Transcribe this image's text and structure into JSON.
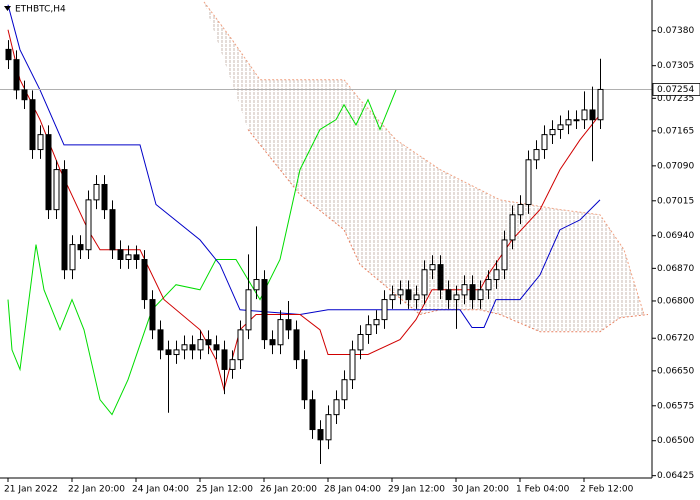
{
  "chart_data": {
    "type": "candlestick",
    "title": "ETHBTC,H4",
    "xlim": [
      -1,
      80.5
    ],
    "ylim": [
      0.0642,
      0.07446
    ],
    "xticks": [
      {
        "value": 0,
        "label": "21 Jan 2022"
      },
      {
        "value": 8,
        "label": "22 Jan 20:00"
      },
      {
        "value": 16,
        "label": "24 Jan 04:00"
      },
      {
        "value": 24,
        "label": "25 Jan 12:00"
      },
      {
        "value": 32,
        "label": "26 Jan 20:00"
      },
      {
        "value": 40,
        "label": "28 Jan 04:00"
      },
      {
        "value": 48,
        "label": "29 Jan 12:00"
      },
      {
        "value": 56,
        "label": "30 Jan 20:00"
      },
      {
        "value": 64,
        "label": "1 Feb 04:00"
      },
      {
        "value": 72,
        "label": "2 Feb 12:00"
      }
    ],
    "yticks": [
      {
        "value": 0.0738,
        "label": "0.07380"
      },
      {
        "value": 0.07305,
        "label": "0.07305"
      },
      {
        "value": 0.07235,
        "label": "0.07235"
      },
      {
        "value": 0.07165,
        "label": "0.07165"
      },
      {
        "value": 0.0709,
        "label": "0.07090"
      },
      {
        "value": 0.07015,
        "label": "0.07015"
      },
      {
        "value": 0.0694,
        "label": "0.06940"
      },
      {
        "value": 0.0687,
        "label": "0.06870"
      },
      {
        "value": 0.068,
        "label": "0.06800"
      },
      {
        "value": 0.0672,
        "label": "0.06720"
      },
      {
        "value": 0.0665,
        "label": "0.06650"
      },
      {
        "value": 0.06575,
        "label": "0.06575"
      },
      {
        "value": 0.065,
        "label": "0.06500"
      },
      {
        "value": 0.06425,
        "label": "0.06425"
      }
    ],
    "current_price": {
      "value": 0.07254,
      "label": "0.07254"
    },
    "up_color": "#ffffff",
    "down_color": "#000000",
    "open": [
      0.0734,
      0.07318,
      0.07253,
      0.07232,
      0.07125,
      0.07157,
      0.06996,
      0.07082,
      0.06867,
      0.06921,
      0.0691,
      0.07017,
      0.0705,
      0.06996,
      0.0691,
      0.06889,
      0.06899,
      0.06889,
      0.06803,
      0.06738,
      0.06695,
      0.06685,
      0.06695,
      0.06706,
      0.06695,
      0.06717,
      0.06706,
      0.06695,
      0.06653,
      0.06674,
      0.06738,
      0.06824,
      0.06846,
      0.06717,
      0.06706,
      0.0676,
      0.06738,
      0.06674,
      0.06588,
      0.06524,
      0.06502,
      0.06556,
      0.06588,
      0.06631,
      0.06695,
      0.06728,
      0.06749,
      0.0676,
      0.06803,
      0.06813,
      0.06824,
      0.06803,
      0.06813,
      0.06867,
      0.06878,
      0.06824,
      0.06803,
      0.06813,
      0.06835,
      0.06803,
      0.06824,
      0.06846,
      0.06867,
      0.06931,
      0.06985,
      0.07007,
      0.07103,
      0.07125,
      0.07157,
      0.07168,
      0.07178,
      0.07189,
      0.07189,
      0.0721,
      0.07189
    ],
    "high": [
      0.0736,
      0.07338,
      0.07273,
      0.07252,
      0.07177,
      0.07177,
      0.07102,
      0.07102,
      0.06941,
      0.06941,
      0.07037,
      0.0707,
      0.0707,
      0.07016,
      0.0693,
      0.06919,
      0.06919,
      0.06909,
      0.06823,
      0.06758,
      0.06715,
      0.06715,
      0.06726,
      0.06726,
      0.06737,
      0.06737,
      0.06726,
      0.06715,
      0.06694,
      0.06758,
      0.069,
      0.0696,
      0.06866,
      0.06737,
      0.0678,
      0.068,
      0.06758,
      0.06694,
      0.06608,
      0.06544,
      0.06576,
      0.06608,
      0.06651,
      0.06715,
      0.06748,
      0.06769,
      0.0678,
      0.06823,
      0.06833,
      0.06844,
      0.06844,
      0.06833,
      0.06887,
      0.06898,
      0.06898,
      0.06844,
      0.06833,
      0.06855,
      0.06855,
      0.06844,
      0.06866,
      0.06887,
      0.06951,
      0.07005,
      0.07027,
      0.07123,
      0.07145,
      0.07177,
      0.07188,
      0.07198,
      0.07209,
      0.07209,
      0.0725,
      0.0726,
      0.0732
    ],
    "low": [
      0.07298,
      0.07233,
      0.07212,
      0.07105,
      0.07105,
      0.06976,
      0.06976,
      0.06847,
      0.06847,
      0.0689,
      0.0689,
      0.06997,
      0.06976,
      0.0689,
      0.06869,
      0.06869,
      0.06869,
      0.06783,
      0.06718,
      0.06675,
      0.0656,
      0.06665,
      0.06675,
      0.06675,
      0.06675,
      0.06686,
      0.06675,
      0.066,
      0.06633,
      0.06654,
      0.06718,
      0.06804,
      0.06697,
      0.06686,
      0.06686,
      0.06718,
      0.06654,
      0.06568,
      0.06504,
      0.0645,
      0.06482,
      0.06536,
      0.06568,
      0.06611,
      0.06675,
      0.06708,
      0.06729,
      0.0674,
      0.06783,
      0.06793,
      0.06783,
      0.06783,
      0.06793,
      0.06847,
      0.06804,
      0.06783,
      0.0674,
      0.06793,
      0.06783,
      0.06783,
      0.06804,
      0.06826,
      0.06847,
      0.06911,
      0.06965,
      0.06987,
      0.07083,
      0.07105,
      0.07137,
      0.07148,
      0.07158,
      0.07169,
      0.07169,
      0.071,
      0.07169
    ],
    "close": [
      0.07318,
      0.07253,
      0.07232,
      0.07125,
      0.07157,
      0.06996,
      0.07082,
      0.06867,
      0.06921,
      0.0691,
      0.07017,
      0.0705,
      0.06996,
      0.0691,
      0.06889,
      0.06899,
      0.06889,
      0.06803,
      0.06738,
      0.06695,
      0.06685,
      0.06695,
      0.06706,
      0.06695,
      0.06717,
      0.06706,
      0.06695,
      0.06653,
      0.06674,
      0.06738,
      0.06824,
      0.06846,
      0.06717,
      0.06706,
      0.0676,
      0.06738,
      0.06674,
      0.06588,
      0.06524,
      0.06502,
      0.06556,
      0.06588,
      0.06631,
      0.06695,
      0.06728,
      0.06749,
      0.0676,
      0.06803,
      0.06813,
      0.06824,
      0.06803,
      0.06813,
      0.06867,
      0.06878,
      0.06824,
      0.06803,
      0.06813,
      0.06835,
      0.06803,
      0.06824,
      0.06846,
      0.06867,
      0.06931,
      0.06985,
      0.07007,
      0.07103,
      0.07125,
      0.07157,
      0.07168,
      0.07178,
      0.07189,
      0.07189,
      0.0721,
      0.07189,
      0.07254
    ],
    "lines": [
      {
        "color": "#00dd00",
        "x": [
          0,
          0.5,
          1.5,
          3.5,
          4.5,
          6.5,
          8,
          9.5,
          11.5,
          13,
          15,
          18,
          21,
          24,
          26,
          28.5,
          31.5,
          34,
          36.5,
          39,
          41,
          42,
          43.5,
          45,
          46.5,
          48.5
        ],
        "values": [
          0.06803,
          0.06695,
          0.06653,
          0.06921,
          0.06824,
          0.06738,
          0.06803,
          0.06738,
          0.06588,
          0.06556,
          0.06631,
          0.06781,
          0.06835,
          0.06824,
          0.06889,
          0.06889,
          0.06803,
          0.06889,
          0.07082,
          0.07168,
          0.07189,
          0.07221,
          0.07178,
          0.07232,
          0.07168,
          0.07253
        ]
      },
      {
        "color": "#0000c8",
        "x": [
          0,
          1.5,
          4,
          7,
          16.5,
          18.5,
          24,
          26.5,
          29,
          36.5,
          40,
          56.5,
          58,
          59.5,
          61,
          64,
          66.5,
          69,
          71.5,
          74
        ],
        "values": [
          0.07436,
          0.07339,
          0.07253,
          0.07135,
          0.07135,
          0.07007,
          0.06931,
          0.06878,
          0.06781,
          0.06771,
          0.06781,
          0.06781,
          0.06743,
          0.06743,
          0.06803,
          0.06803,
          0.06856,
          0.06953,
          0.06974,
          0.07017
        ]
      },
      {
        "color": "#d00000",
        "x": [
          0,
          1.5,
          4,
          6.5,
          10,
          11.5,
          16.5,
          19.5,
          24,
          26,
          27,
          29,
          31,
          36.5,
          39,
          40,
          45,
          49,
          51,
          53,
          59,
          60,
          63,
          66.5,
          69,
          71.5,
          74
        ],
        "values": [
          0.07382,
          0.07275,
          0.07189,
          0.07082,
          0.06953,
          0.0691,
          0.0691,
          0.06803,
          0.06738,
          0.06674,
          0.0661,
          0.06738,
          0.06771,
          0.06771,
          0.06738,
          0.06685,
          0.06685,
          0.06717,
          0.0676,
          0.06824,
          0.06824,
          0.06856,
          0.06931,
          0.06996,
          0.07082,
          0.07146,
          0.072
        ]
      }
    ],
    "cloud_fill": "#c8b8b0",
    "cloud": [
      {
        "color": "#f0a080",
        "x": [
          24.5,
          28,
          31.5,
          42,
          44,
          48.5,
          54,
          61.5,
          69,
          74,
          77,
          79.5
        ],
        "values": [
          0.07442,
          0.07361,
          0.07275,
          0.07275,
          0.07232,
          0.07146,
          0.07082,
          0.07017,
          0.06996,
          0.06985,
          0.0691,
          0.06771
        ]
      },
      {
        "color": "#e88060",
        "x": [
          30,
          36.5,
          42,
          44,
          48.5,
          51.5,
          54,
          59,
          61.5,
          66.5,
          74,
          76.5,
          80
        ],
        "values": [
          0.07168,
          0.07028,
          0.06953,
          0.06878,
          0.06813,
          0.06771,
          0.06781,
          0.06781,
          0.06771,
          0.06734,
          0.06734,
          0.06764,
          0.06771
        ]
      }
    ]
  }
}
